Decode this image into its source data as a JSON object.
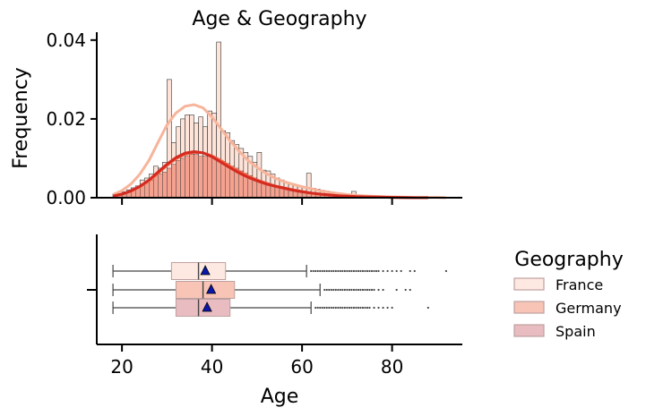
{
  "chart_data": {
    "type": "histogram+box",
    "title": "Age & Geography",
    "xlabel": "Age",
    "ylabel": "Frequency",
    "xlim": [
      14.4,
      95.6
    ],
    "ylim": [
      0,
      0.042
    ],
    "x_ticks": [
      "20",
      "40",
      "60",
      "80"
    ],
    "y_ticks": [
      "0.00",
      "0.02",
      "0.04"
    ],
    "legend": {
      "title": "Geography",
      "placement": "right",
      "entries": [
        "France",
        "Germany",
        "Spain"
      ]
    },
    "colors": {
      "France": "#fde9e1",
      "Germany": "#f7c4b6",
      "Spain": "#e8bcc0",
      "bar_fill_light": "#fde3d8",
      "bar_fill_dark": "#f4a18f",
      "kde_france": "#f7b49a",
      "kde_germany": "#f26144",
      "kde_spain": "#d42a20",
      "mean_marker": "#0b17a8"
    },
    "histogram": {
      "bin_width": 1,
      "x_start": 18,
      "outline_values": [
        0.001,
        0.001,
        0.0015,
        0.002,
        0.0025,
        0.003,
        0.0045,
        0.005,
        0.006,
        0.008,
        0.0075,
        0.009,
        0.03,
        0.014,
        0.018,
        0.02,
        0.021,
        0.021,
        0.019,
        0.0205,
        0.018,
        0.022,
        0.0215,
        0.0395,
        0.017,
        0.0165,
        0.0145,
        0.0135,
        0.0125,
        0.0115,
        0.0105,
        0.009,
        0.0115,
        0.007,
        0.0068,
        0.006,
        0.005,
        0.0045,
        0.004,
        0.0035,
        0.0032,
        0.003,
        0.0028,
        0.0062,
        0.0024,
        0.0022,
        0.0019,
        0.0017,
        0.0015,
        0.0013,
        0.0011,
        0.001,
        0.0009,
        0.0016,
        0.0007,
        0.0006,
        0.0005,
        0.0004,
        0.0004,
        0.0003,
        0.0003,
        0.0002,
        0.0002,
        0.0002,
        0.0001,
        0.0001,
        0.0001,
        0.0001,
        0.0001,
        0.0001,
        0.0001,
        0.0001,
        0.0001,
        0.0001
      ],
      "filled_values": [
        0.0008,
        0.001,
        0.0015,
        0.002,
        0.0025,
        0.003,
        0.0035,
        0.004,
        0.0045,
        0.006,
        0.006,
        0.0065,
        0.0075,
        0.0085,
        0.0095,
        0.01,
        0.0105,
        0.011,
        0.011,
        0.0105,
        0.0105,
        0.0105,
        0.01,
        0.0098,
        0.0092,
        0.0087,
        0.008,
        0.0075,
        0.0068,
        0.0062,
        0.0056,
        0.005,
        0.0045,
        0.004,
        0.0036,
        0.0032,
        0.0029,
        0.0026,
        0.0023,
        0.002,
        0.0018,
        0.0016,
        0.0014,
        0.0012,
        0.0011,
        0.001,
        0.0009,
        0.0008,
        0.0007,
        0.0006,
        0.0005,
        0.0004,
        0.0004,
        0.0003,
        0.0003,
        0.0002,
        0.0002,
        0.0002,
        0.0001,
        0.0001,
        0.0001,
        0.0001,
        0.0001,
        0.0001,
        0.0001,
        0.0001,
        0.0001,
        0.0001,
        0.0001,
        0.0001,
        0.0001,
        0.0001,
        0.0001,
        0.0001
      ]
    },
    "kde": [
      {
        "name": "France",
        "x": [
          18,
          20,
          22,
          24,
          26,
          28,
          30,
          32,
          34,
          36,
          38,
          40,
          42,
          44,
          46,
          48,
          50,
          52,
          54,
          56,
          58,
          60,
          62,
          64,
          66,
          68,
          70,
          72,
          75,
          80,
          85,
          90,
          92
        ],
        "y": [
          0.0008,
          0.0018,
          0.0035,
          0.006,
          0.0095,
          0.014,
          0.0185,
          0.0215,
          0.0232,
          0.0236,
          0.0228,
          0.0205,
          0.0175,
          0.0145,
          0.0118,
          0.0095,
          0.0077,
          0.0062,
          0.005,
          0.0041,
          0.0034,
          0.0028,
          0.0023,
          0.0018,
          0.0014,
          0.0011,
          0.0008,
          0.0006,
          0.0004,
          0.0002,
          0.0001,
          0.0001,
          0
        ]
      },
      {
        "name": "Germany",
        "x": [
          18,
          20,
          22,
          24,
          26,
          28,
          30,
          32,
          34,
          36,
          38,
          40,
          42,
          44,
          46,
          48,
          50,
          52,
          54,
          56,
          58,
          60,
          62,
          64,
          66,
          68,
          70,
          72,
          75,
          80,
          85,
          88
        ],
        "y": [
          0.0004,
          0.0009,
          0.0017,
          0.0028,
          0.0043,
          0.0062,
          0.0082,
          0.0099,
          0.011,
          0.0115,
          0.0114,
          0.0106,
          0.0094,
          0.008,
          0.0067,
          0.0055,
          0.0045,
          0.0037,
          0.003,
          0.0025,
          0.002,
          0.0016,
          0.0012,
          0.0009,
          0.0007,
          0.0005,
          0.0004,
          0.0003,
          0.0002,
          0.0001,
          0,
          0
        ]
      },
      {
        "name": "Spain",
        "x": [
          18,
          20,
          22,
          24,
          26,
          28,
          30,
          32,
          34,
          36,
          38,
          40,
          42,
          44,
          46,
          48,
          50,
          52,
          54,
          56,
          58,
          60,
          62,
          64,
          66,
          68,
          70,
          72,
          75,
          80,
          85,
          88
        ],
        "y": [
          0.0004,
          0.0009,
          0.0017,
          0.0029,
          0.0045,
          0.0065,
          0.0085,
          0.0102,
          0.0113,
          0.0117,
          0.0114,
          0.0104,
          0.009,
          0.0076,
          0.0063,
          0.0052,
          0.0043,
          0.0035,
          0.0029,
          0.0024,
          0.0019,
          0.0015,
          0.0012,
          0.0009,
          0.0007,
          0.0005,
          0.0004,
          0.0003,
          0.0002,
          0.0001,
          0,
          0
        ]
      }
    ],
    "boxplot": [
      {
        "name": "France",
        "whisker_low": 18,
        "q1": 31,
        "median": 37,
        "q3": 43,
        "whisker_high": 61,
        "mean": 38.5,
        "outliers": [
          62,
          62.5,
          63,
          63.5,
          64,
          64.5,
          65,
          65.5,
          66,
          66.5,
          67,
          67.5,
          68,
          68.5,
          69,
          69.5,
          70,
          70.5,
          71,
          71.5,
          72,
          72.5,
          73,
          73.5,
          74,
          74.5,
          75,
          75.5,
          76,
          76.5,
          77,
          78,
          79,
          80,
          81,
          82,
          84,
          85,
          92
        ]
      },
      {
        "name": "Germany",
        "whisker_low": 18,
        "q1": 32,
        "median": 38,
        "q3": 45,
        "whisker_high": 64,
        "mean": 39.8,
        "outliers": [
          65,
          65.5,
          66,
          66.5,
          67,
          67.5,
          68,
          68.5,
          69,
          69.5,
          70,
          70.5,
          71,
          71.5,
          72,
          72.5,
          73,
          73.5,
          74,
          74.5,
          75,
          75.5,
          76,
          77,
          78,
          81,
          83,
          84
        ]
      },
      {
        "name": "Spain",
        "whisker_low": 18,
        "q1": 32,
        "median": 37,
        "q3": 44,
        "whisker_high": 62,
        "mean": 38.9,
        "outliers": [
          63,
          63.5,
          64,
          64.5,
          65,
          65.5,
          66,
          66.5,
          67,
          67.5,
          68,
          68.5,
          69,
          69.5,
          70,
          70.5,
          71,
          71.5,
          72,
          72.5,
          73,
          73.5,
          74,
          74.5,
          75,
          76,
          77,
          78,
          79,
          80,
          88
        ]
      }
    ]
  }
}
